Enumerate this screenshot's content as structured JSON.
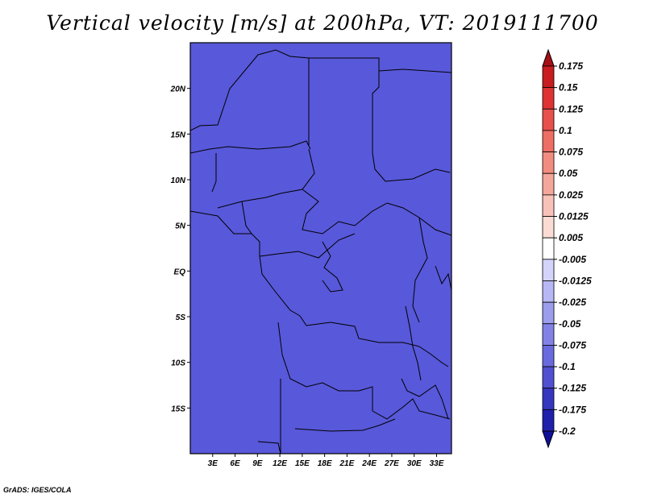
{
  "title": "Vertical velocity [m/s] at 200hPa, VT: 2019111700",
  "footer": "GrADS: IGES/COLA",
  "map": {
    "lon_range": [
      0,
      35
    ],
    "lat_range": [
      -20,
      25
    ],
    "lat_ticks": [
      {
        "value": 20,
        "label": "20N"
      },
      {
        "value": 15,
        "label": "15N"
      },
      {
        "value": 10,
        "label": "10N"
      },
      {
        "value": 5,
        "label": "5N"
      },
      {
        "value": 0,
        "label": "EQ"
      },
      {
        "value": -5,
        "label": "5S"
      },
      {
        "value": -10,
        "label": "10S"
      },
      {
        "value": -15,
        "label": "15S"
      }
    ],
    "lon_ticks": [
      {
        "value": 3,
        "label": "3E"
      },
      {
        "value": 6,
        "label": "6E"
      },
      {
        "value": 9,
        "label": "9E"
      },
      {
        "value": 12,
        "label": "12E"
      },
      {
        "value": 15,
        "label": "15E"
      },
      {
        "value": 18,
        "label": "18E"
      },
      {
        "value": 21,
        "label": "21E"
      },
      {
        "value": 24,
        "label": "24E"
      },
      {
        "value": 27,
        "label": "27E"
      },
      {
        "value": 30,
        "label": "30E"
      },
      {
        "value": 33,
        "label": "33E"
      }
    ]
  },
  "colorbar": {
    "levels": [
      "0.175",
      "0.15",
      "0.125",
      "0.1",
      "0.075",
      "0.05",
      "0.025",
      "0.0125",
      "0.005",
      "-0.005",
      "-0.0125",
      "-0.025",
      "-0.05",
      "-0.075",
      "-0.1",
      "-0.125",
      "-0.175",
      "-0.2"
    ],
    "colors": [
      "#a50f15",
      "#c81c1f",
      "#de3233",
      "#e8504b",
      "#ee6e64",
      "#f28c80",
      "#f5a69b",
      "#f8c2b8",
      "#fbdcd4",
      "#ffffff",
      "#d4d4fb",
      "#b7b7f5",
      "#9d9dee",
      "#8282e6",
      "#6a6adf",
      "#5050d1",
      "#3636c0",
      "#2020ad",
      "#10109a"
    ]
  }
}
